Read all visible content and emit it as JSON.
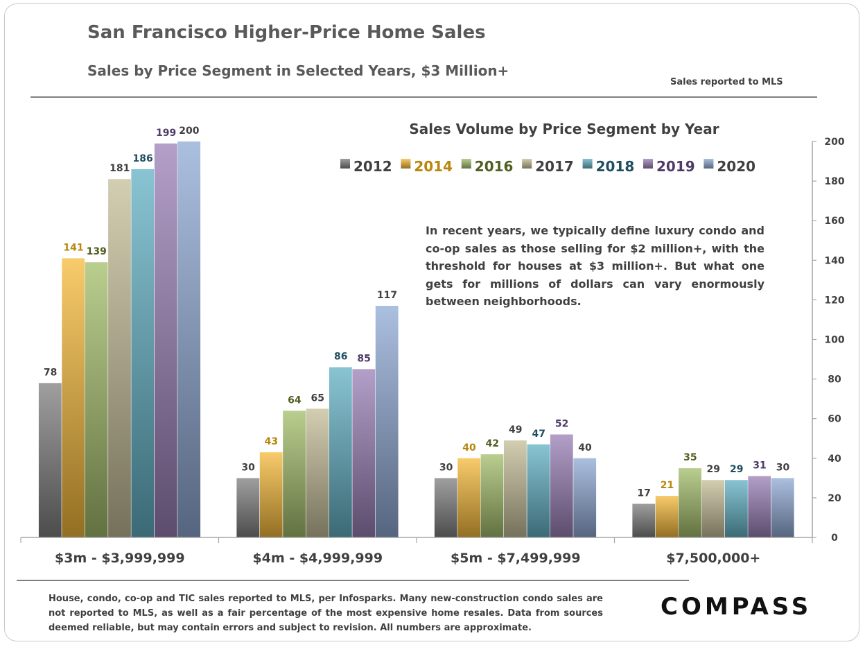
{
  "header": {
    "title": "San Francisco Higher-Price Home Sales",
    "subtitle": "Sales by Price Segment in Selected Years, $3 Million+",
    "source_note": "Sales reported to MLS"
  },
  "annotation": "In recent years, we typically define luxury condo and co-op sales as those selling for $2 million+, with the threshold for houses at $3 million+. But what one gets for millions of dollars can vary enormously between neighborhoods.",
  "footer": {
    "disclaimer": "House, condo, co-op and TIC sales reported to MLS, per Infosparks. Many new-construction condo sales are not reported to MLS, as well as a fair percentage of the most expensive home resales. Data from sources deemed reliable, but may contain errors and subject to revision.  All numbers are approximate.",
    "logo": "COMPASS"
  },
  "chart_data": {
    "type": "bar",
    "title": "Sales Volume by Price Segment by Year",
    "categories": [
      "$3m - $3,999,999",
      "$4m - $4,999,999",
      "$5m - $7,499,999",
      "$7,500,000+"
    ],
    "series": [
      {
        "name": "2012",
        "values": [
          78,
          30,
          30,
          17
        ],
        "color": "#7f7f7f",
        "label_color": "#404040"
      },
      {
        "name": "2014",
        "values": [
          141,
          43,
          40,
          21
        ],
        "color": "#f5b93a",
        "label_color": "#b8860b"
      },
      {
        "name": "2016",
        "values": [
          139,
          64,
          42,
          35
        ],
        "color": "#a3bd6a",
        "label_color": "#4f5f1f"
      },
      {
        "name": "2017",
        "values": [
          181,
          65,
          49,
          29
        ],
        "color": "#c4bd97",
        "label_color": "#404040"
      },
      {
        "name": "2018",
        "values": [
          186,
          86,
          47,
          29
        ],
        "color": "#62b0c4",
        "label_color": "#1f4e5f"
      },
      {
        "name": "2019",
        "values": [
          199,
          85,
          52,
          31
        ],
        "color": "#9a7fb5",
        "label_color": "#4f3a68"
      },
      {
        "name": "2020",
        "values": [
          200,
          117,
          40,
          30
        ],
        "color": "#8fa9d4",
        "label_color": "#404040"
      }
    ],
    "y_axis": {
      "min": 0,
      "max": 200,
      "step": 20,
      "position": "right"
    },
    "legend": "top-right",
    "grid": false
  }
}
